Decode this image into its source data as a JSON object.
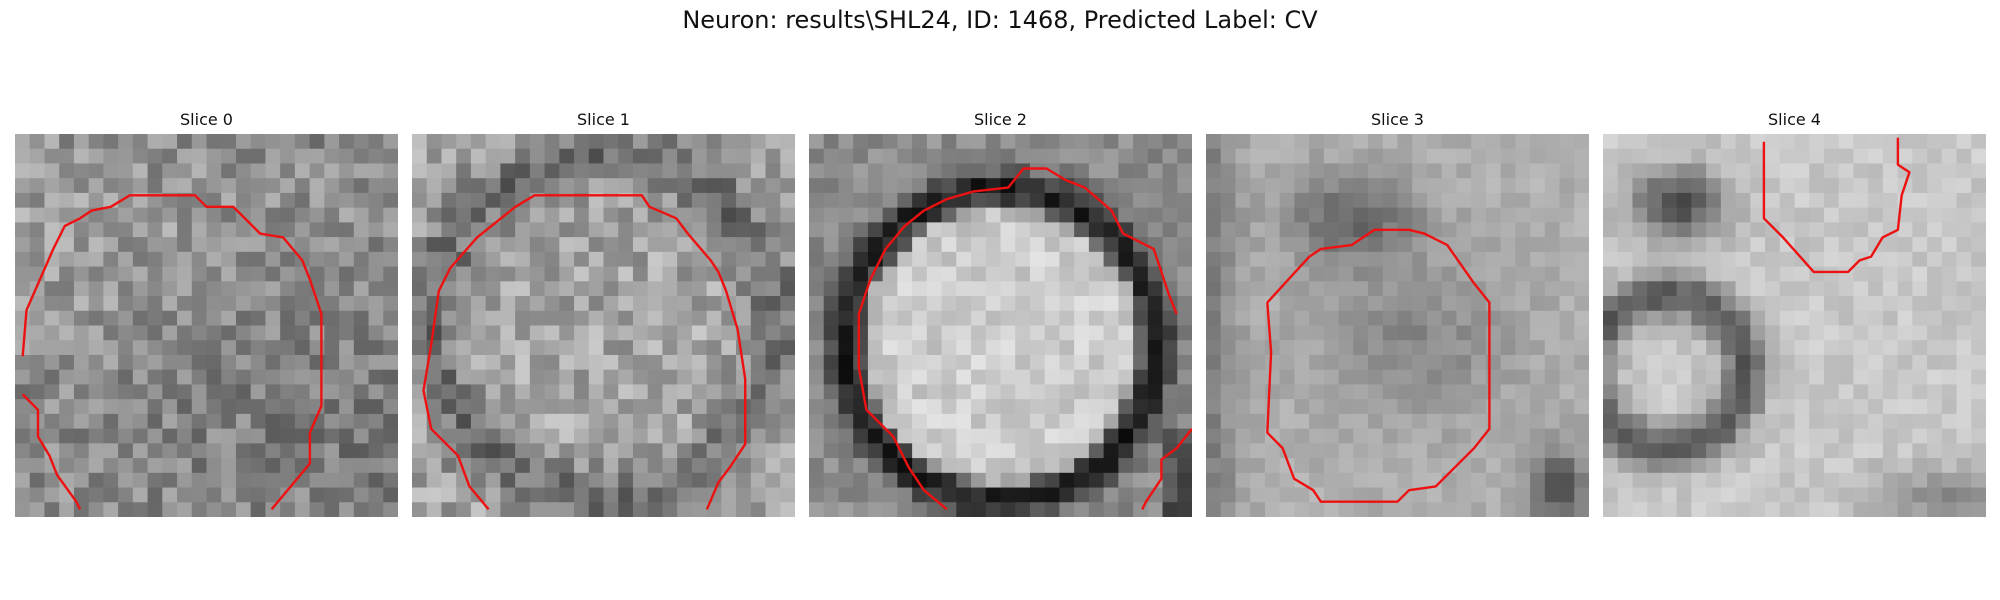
{
  "figure": {
    "title": "Neuron: results\\SHL24, ID: 1468, Predicted Label: CV"
  },
  "colors": {
    "contour": "#ee1111",
    "background": "#ffffff"
  },
  "panels": [
    {
      "label": "Slice 0",
      "image": "grayscale-em-patch",
      "contour_color": "#ee1111"
    },
    {
      "label": "Slice 1",
      "image": "grayscale-em-patch",
      "contour_color": "#ee1111"
    },
    {
      "label": "Slice 2",
      "image": "grayscale-em-patch",
      "contour_color": "#ee1111"
    },
    {
      "label": "Slice 3",
      "image": "grayscale-em-patch",
      "contour_color": "#ee1111"
    },
    {
      "label": "Slice 4",
      "image": "grayscale-em-patch",
      "contour_color": "#ee1111"
    }
  ]
}
